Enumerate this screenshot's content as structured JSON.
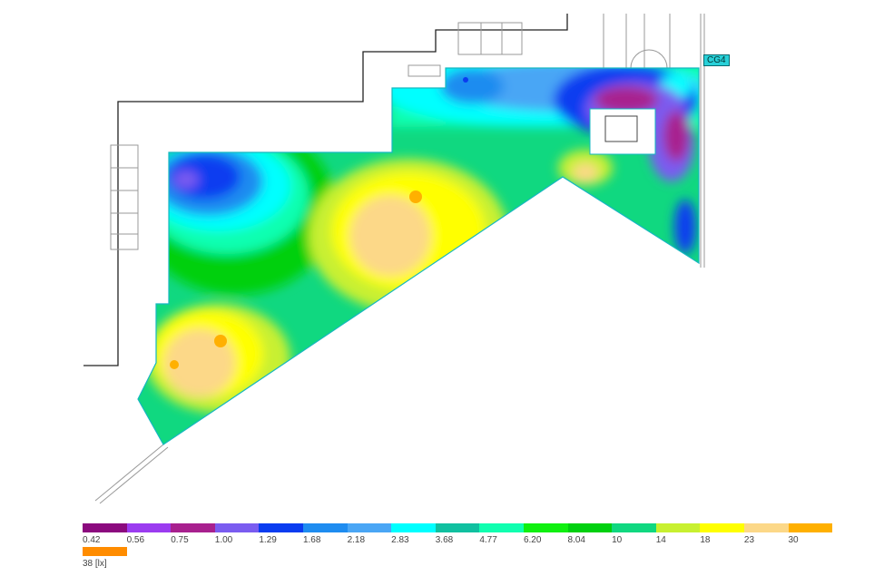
{
  "plan": {
    "tag_label": "CG4"
  },
  "legend": {
    "unit_label": "38 [lx]",
    "items": [
      {
        "label": "0.42",
        "color": "#8b0a7e"
      },
      {
        "label": "0.56",
        "color": "#9b3cf0"
      },
      {
        "label": "0.75",
        "color": "#a8208e"
      },
      {
        "label": "1.00",
        "color": "#7a5cf0"
      },
      {
        "label": "1.29",
        "color": "#0a3cf0"
      },
      {
        "label": "1.68",
        "color": "#1e8cf0"
      },
      {
        "label": "2.18",
        "color": "#4aa6f5"
      },
      {
        "label": "2.83",
        "color": "#00ffff"
      },
      {
        "label": "3.68",
        "color": "#10c0a0"
      },
      {
        "label": "4.77",
        "color": "#10ffb0"
      },
      {
        "label": "6.20",
        "color": "#10f010"
      },
      {
        "label": "8.04",
        "color": "#00d010"
      },
      {
        "label": "10",
        "color": "#10d880"
      },
      {
        "label": "14",
        "color": "#c8f030"
      },
      {
        "label": "18",
        "color": "#ffff00"
      },
      {
        "label": "23",
        "color": "#fcd888"
      },
      {
        "label": "30",
        "color": "#ffb000"
      }
    ],
    "last_color": "#ff8c00"
  }
}
